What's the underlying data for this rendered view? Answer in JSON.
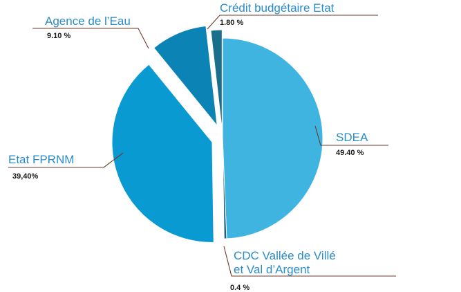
{
  "chart_data": {
    "type": "pie",
    "exploded": true,
    "slices": [
      {
        "name": "SDEA",
        "value": 49.4,
        "value_label": "49.40 %",
        "color": "#3fb4e0"
      },
      {
        "name": "CDC Vallée de Villé et Val d’Argent",
        "name_lines": [
          "CDC Vallée de Villé",
          "et Val d’Argent"
        ],
        "value": 0.4,
        "value_label": "0.4 %",
        "color": "#1e5f7a"
      },
      {
        "name": "Etat FPRNM",
        "value": 39.4,
        "value_label": "39,40%",
        "color": "#0a9ad2"
      },
      {
        "name": "Agence de l’Eau",
        "value": 9.1,
        "value_label": "9.10 %",
        "color": "#0b84b5"
      },
      {
        "name": "Crédit budgétaire Etat",
        "value": 1.8,
        "value_label": "1.80 %",
        "color": "#1a6f8c"
      }
    ]
  }
}
